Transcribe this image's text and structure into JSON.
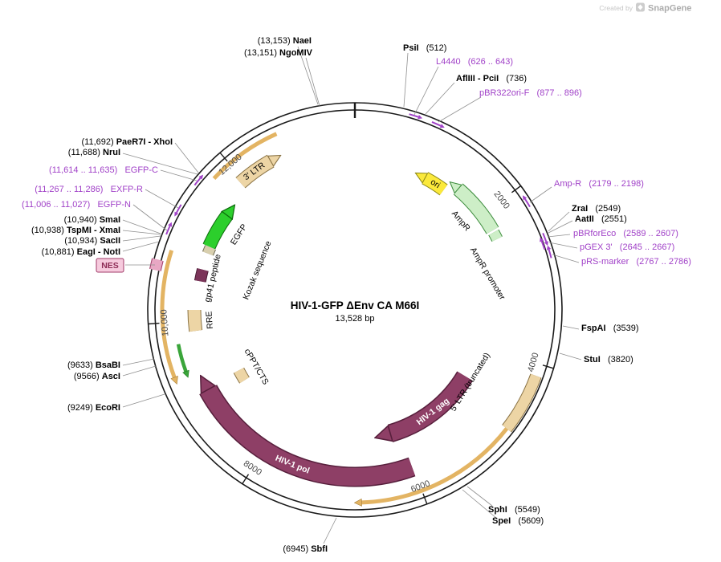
{
  "watermark": {
    "prefix": "Created by",
    "brand": "SnapGene"
  },
  "plasmid": {
    "title": "HIV-1-GFP ΔEnv CA M66I",
    "size_label": "13,528 bp"
  },
  "colors": {
    "backbone": "#1a1a1a",
    "cds_maroon": "#8e3f66",
    "cds_maroon_dark": "#571f3c",
    "tan": "#edd5a5",
    "tan_dark": "#8a7345",
    "tan_thin": "#e3b463",
    "egfp_green": "#2ccf2c",
    "egfp_green_dark": "#0b6b0b",
    "thin_green": "#3aa53a",
    "ori_yellow": "#fbe93b",
    "ori_yellow_dark": "#8f8a18",
    "amp_green": "#cdeec7",
    "amp_green_dark": "#3c8c3c",
    "primer_purple": "#a142c8",
    "gp41_fill": "#7c355a",
    "gp41_dark": "#4a1e36",
    "kozak_fill": "#d8cfae",
    "kozak_dark": "#6f6a55",
    "nes_pink": "#e8a7c4",
    "nes_pink_dark": "#a03a68",
    "nes_bg": "#f6cadd",
    "nes_text": "#8d2b55",
    "leader": "#8f8f8f",
    "scale_text": "#4a4a4a"
  },
  "scale": {
    "t2000": "2000",
    "t4000": "4000",
    "t6000": "6000",
    "t8000": "8000",
    "t10000": "10,000",
    "t12000": "12,000"
  },
  "features": {
    "ltr3": "3' LTR",
    "egfp": "EGFP",
    "gp41": "gp41 peptide",
    "kozak": "Kozak sequence",
    "rre": "RRE",
    "cppt": "cPPT/CTS",
    "pol": "HIV-1 pol",
    "gag": "HIV-1 gag",
    "ltr5": "5' LTR (truncated)",
    "ori": "ori",
    "ampr": "AmpR",
    "ampr_promoter": "AmpR promoter",
    "nes": "NES"
  },
  "enzymes": [
    {
      "pre": "(13,153) ",
      "name": "NaeI"
    },
    {
      "pre": "(13,151) ",
      "name": "NgoMIV"
    },
    {
      "name": "PsiI",
      "post": "   (512)"
    },
    {
      "name": "AflIII - PciI",
      "post": "   (736)"
    },
    {
      "name": "ZraI",
      "post": "   (2549)"
    },
    {
      "name": "AatII",
      "post": "   (2551)"
    },
    {
      "name": "FspAI",
      "post": "   (3539)"
    },
    {
      "name": "StuI",
      "post": "   (3820)"
    },
    {
      "name": "SphI",
      "post": "   (5549)"
    },
    {
      "name": "SpeI",
      "post": "   (5609)"
    },
    {
      "pre": "(6945) ",
      "name": "SbfI"
    },
    {
      "pre": "(9249) ",
      "name": "EcoRI"
    },
    {
      "pre": "(9633) ",
      "name": "BsaBI"
    },
    {
      "pre": "(9566) ",
      "name": "AscI"
    },
    {
      "pre": "(10,881) ",
      "name": "EagI - NotI"
    },
    {
      "pre": "(10,934) ",
      "name": "SacII"
    },
    {
      "pre": "(10,938) ",
      "name": "TspMI - XmaI"
    },
    {
      "pre": "(10,940) ",
      "name": "SmaI"
    },
    {
      "pre": "(11,688) ",
      "name": "NruI"
    },
    {
      "pre": "(11,692) ",
      "name": "PaeR7I - XhoI"
    }
  ],
  "primers": [
    {
      "name": "L4440",
      "range": "   (626 .. 643)"
    },
    {
      "name": "pBR322ori-F",
      "range": "   (877 .. 896)"
    },
    {
      "name": "Amp-R",
      "range": "   (2179 .. 2198)"
    },
    {
      "name": "pBRforEco",
      "range": "   (2589 .. 2607)"
    },
    {
      "name": "pGEX 3'",
      "range": "   (2645 .. 2667)"
    },
    {
      "name": "pRS-marker",
      "range": "   (2767 .. 2786)"
    },
    {
      "range": "(11,614 .. 11,635)   ",
      "name": "EGFP-C"
    },
    {
      "range": "(11,267 .. 11,286)   ",
      "name": "EXFP-R"
    },
    {
      "range": "(11,006 .. 11,027)   ",
      "name": "EGFP-N"
    }
  ]
}
